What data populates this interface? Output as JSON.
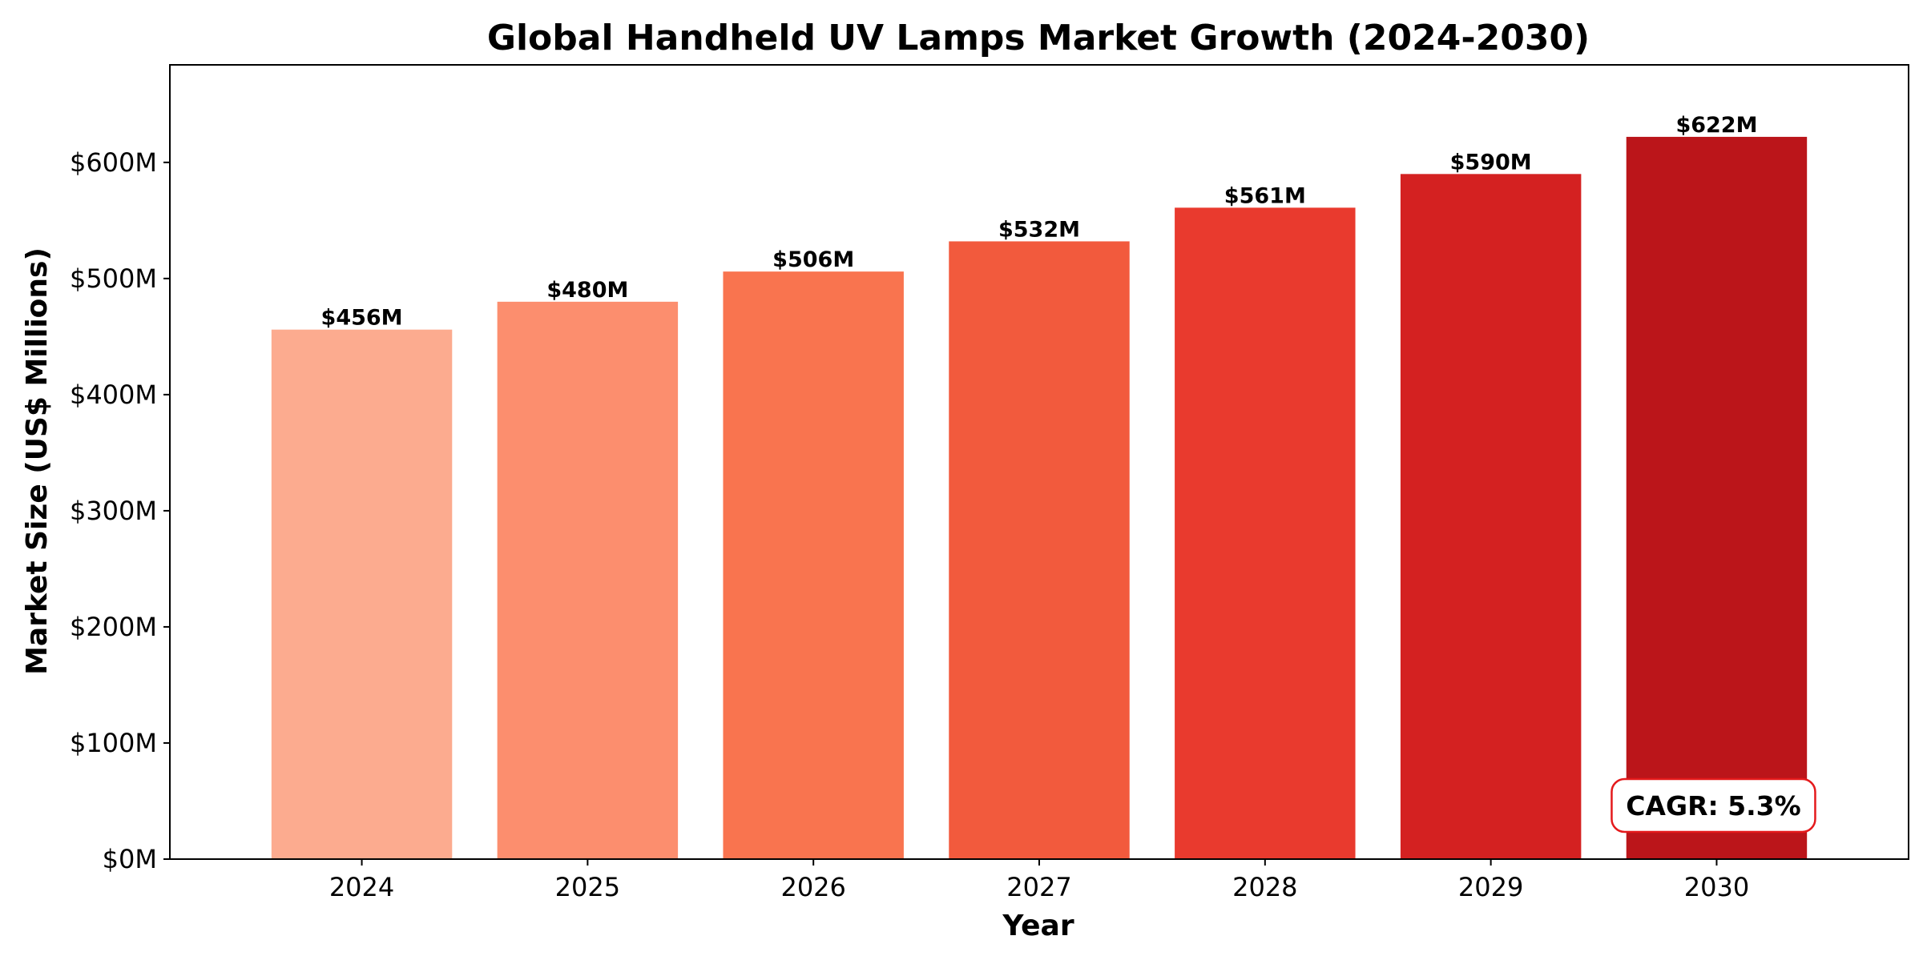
{
  "chart_data": {
    "type": "bar",
    "title": "Global Handheld UV Lamps Market Growth (2024-2030)",
    "xlabel": "Year",
    "ylabel": "Market Size (US$ Millions)",
    "categories": [
      "2024",
      "2025",
      "2026",
      "2027",
      "2028",
      "2029",
      "2030"
    ],
    "values": [
      456,
      480,
      506,
      532,
      561,
      590,
      622
    ],
    "data_labels": [
      "$456M",
      "$480M",
      "$506M",
      "$532M",
      "$561M",
      "$590M",
      "$622M"
    ],
    "bar_colors": [
      "#fcab8f",
      "#fc8e6e",
      "#f9744f",
      "#f25a3d",
      "#e93a2e",
      "#d42121",
      "#bb151a"
    ],
    "ylim": [
      0,
      684
    ],
    "yticks": [
      0,
      100,
      200,
      300,
      400,
      500,
      600
    ],
    "ytick_labels": [
      "$0M",
      "$100M",
      "$200M",
      "$300M",
      "$400M",
      "$500M",
      "$600M"
    ],
    "grid": false,
    "annotation": {
      "text": "CAGR: 5.3%",
      "border_color": "#e41a1c"
    }
  }
}
